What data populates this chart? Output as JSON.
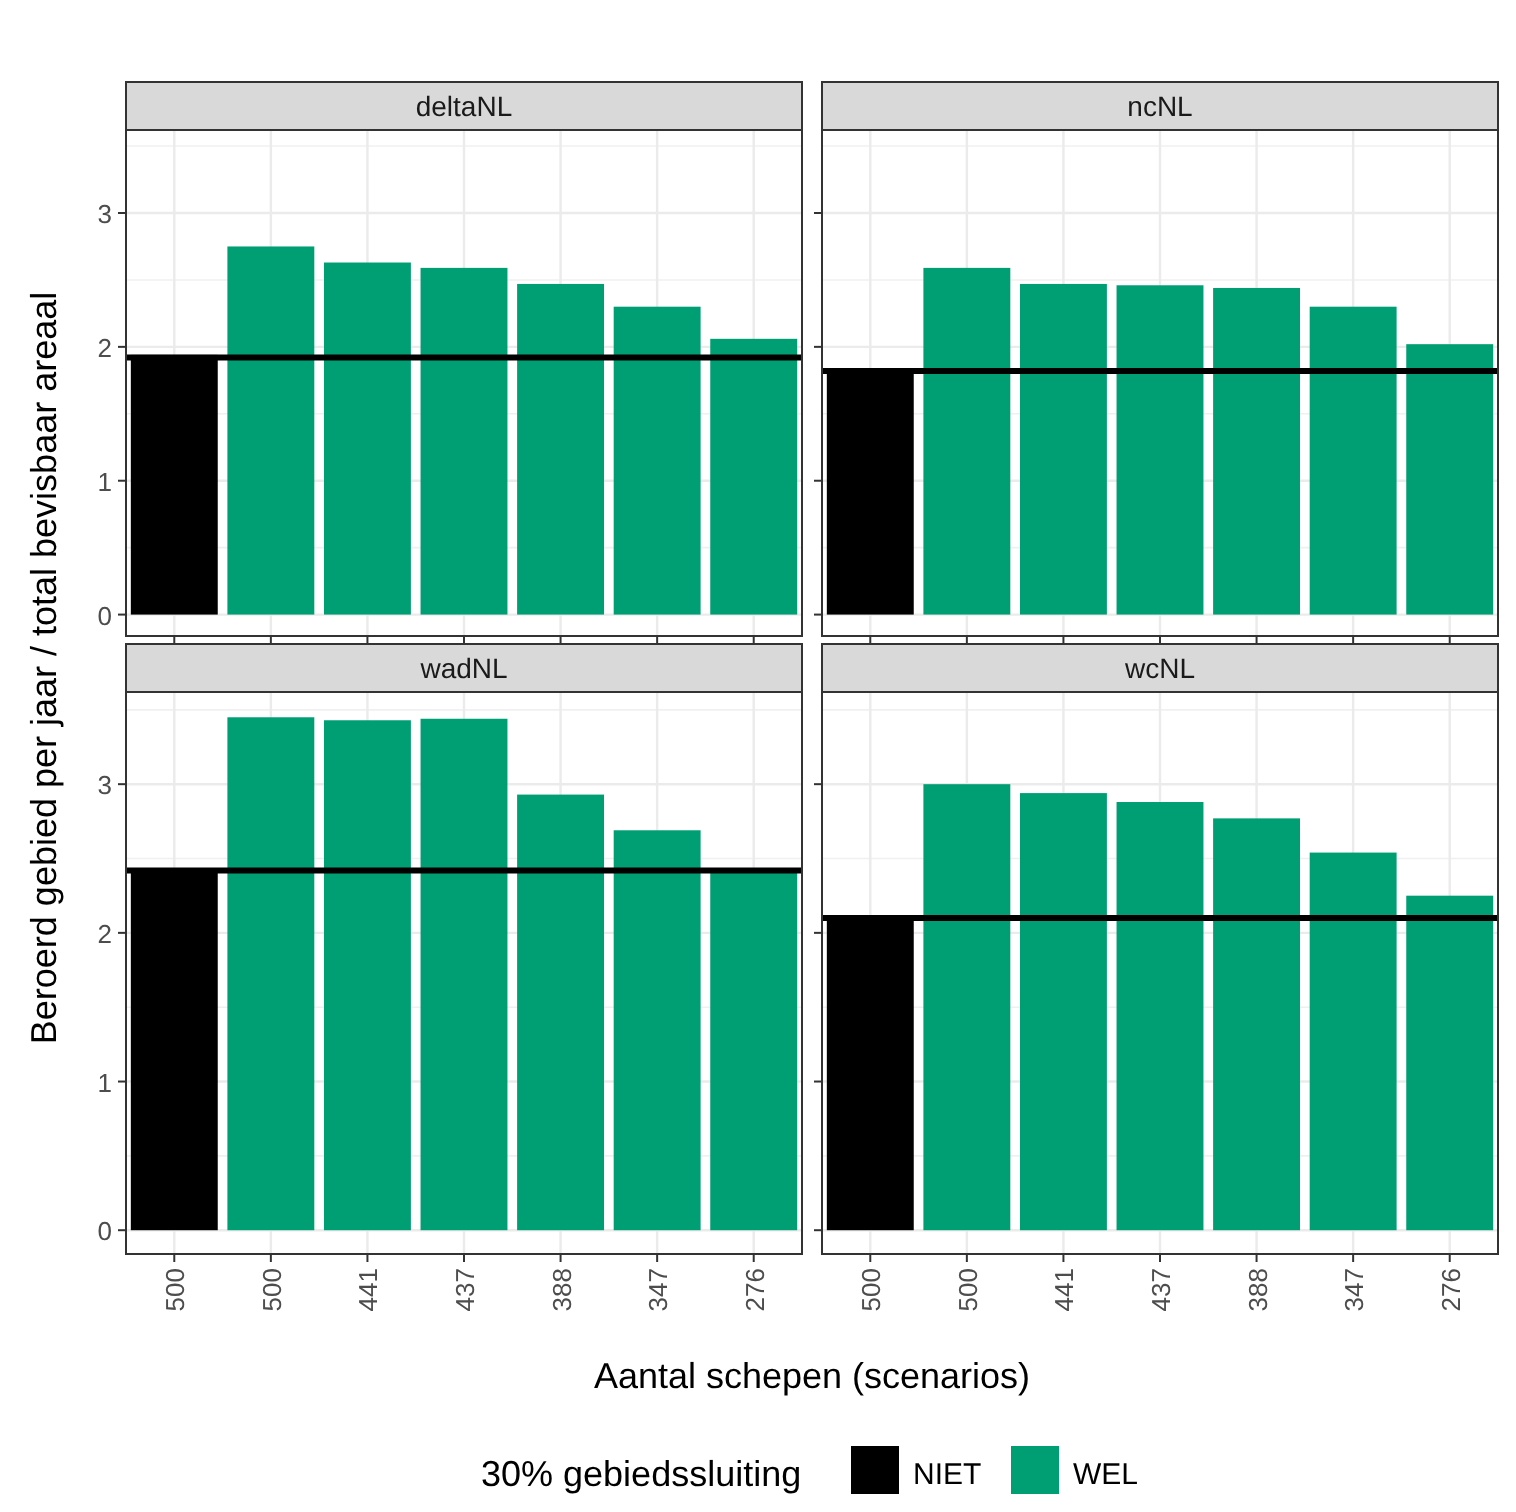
{
  "chart_data": [
    {
      "type": "bar",
      "title": "deltaNL",
      "ylabel": "Beroerd gebied per jaar / total bevisbaar areaal",
      "categories": [
        "500",
        "500",
        "441",
        "437",
        "388",
        "347",
        "276"
      ],
      "ylim": [
        -0.16,
        3.62
      ],
      "yticks": [
        0,
        1,
        2,
        3
      ],
      "grid": true,
      "tick_labels": "y",
      "legend": "bottom",
      "legend_title": "30% gebiedssluiting",
      "series": [
        {
          "name": "NIET",
          "color": "#000000",
          "values": [
            1.94,
            null,
            null,
            null,
            null,
            null,
            null
          ]
        },
        {
          "name": "WEL",
          "color": "#009e73",
          "values": [
            null,
            2.75,
            2.63,
            2.59,
            2.47,
            2.3,
            2.06
          ]
        }
      ],
      "ref_lines": [
        {
          "axis": "y",
          "value": 1.92,
          "color": "#000000"
        }
      ]
    },
    {
      "type": "bar",
      "title": "ncNL",
      "categories": [
        "500",
        "500",
        "441",
        "437",
        "388",
        "347",
        "276"
      ],
      "ylim": [
        -0.16,
        3.62
      ],
      "yticks": [
        0,
        1,
        2,
        3
      ],
      "grid": true,
      "tick_labels": false,
      "series": [
        {
          "color": "#000000",
          "values": [
            1.82,
            null,
            null,
            null,
            null,
            null,
            null
          ]
        },
        {
          "color": "#009e73",
          "values": [
            null,
            2.59,
            2.47,
            2.46,
            2.44,
            2.3,
            2.02
          ]
        }
      ],
      "ref_lines": [
        {
          "axis": "y",
          "value": 1.82,
          "color": "#000000"
        }
      ]
    },
    {
      "type": "bar",
      "title": "wadNL",
      "xlabel": "Aantal schepen (scenarios)",
      "categories": [
        "500",
        "500",
        "441",
        "437",
        "388",
        "347",
        "276"
      ],
      "ylim": [
        -0.16,
        3.62
      ],
      "yticks": [
        0,
        1,
        2,
        3
      ],
      "grid": true,
      "series": [
        {
          "color": "#000000",
          "values": [
            2.41,
            null,
            null,
            null,
            null,
            null,
            null
          ]
        },
        {
          "color": "#009e73",
          "values": [
            null,
            3.45,
            3.43,
            3.44,
            2.93,
            2.69,
            2.41
          ]
        }
      ],
      "ref_lines": [
        {
          "axis": "y",
          "value": 2.42,
          "color": "#000000"
        }
      ]
    },
    {
      "type": "bar",
      "title": "wcNL",
      "categories": [
        "500",
        "500",
        "441",
        "437",
        "388",
        "347",
        "276"
      ],
      "ylim": [
        -0.16,
        3.62
      ],
      "yticks": [
        0,
        1,
        2,
        3
      ],
      "grid": true,
      "tick_labels": "x",
      "series": [
        {
          "color": "#000000",
          "values": [
            2.1,
            null,
            null,
            null,
            null,
            null,
            null
          ]
        },
        {
          "color": "#009e73",
          "values": [
            null,
            3.0,
            2.94,
            2.88,
            2.77,
            2.54,
            2.25
          ]
        }
      ],
      "ref_lines": [
        {
          "axis": "y",
          "value": 2.1,
          "color": "#000000"
        }
      ]
    }
  ]
}
